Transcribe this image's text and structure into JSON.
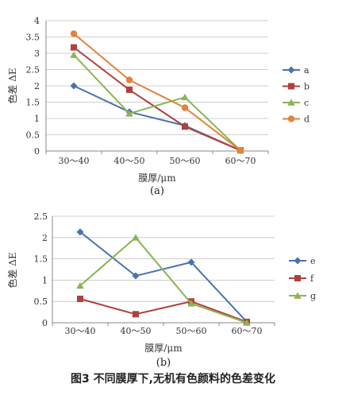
{
  "figure_caption": "图3 不同膜厚下,无机有色颜料的色差变化",
  "chart_data": [
    {
      "type": "line",
      "panel_label": "(a)",
      "xlabel": "膜厚/μm",
      "ylabel": "色差 ΔE",
      "categories": [
        "30～40",
        "40～50",
        "50～60",
        "60～70"
      ],
      "ylim": [
        0,
        4
      ],
      "yticks": [
        "0",
        "0.5",
        "1",
        "1.5",
        "2",
        "2.5",
        "3",
        "3.5",
        "4"
      ],
      "grid": true,
      "legend_position": "right",
      "series": [
        {
          "name": "a",
          "color": "#4a72b0",
          "marker": "diamond",
          "values": [
            2.0,
            1.2,
            0.78,
            0.02
          ]
        },
        {
          "name": "b",
          "color": "#b0413e",
          "marker": "square",
          "values": [
            3.18,
            1.88,
            0.75,
            0.02
          ]
        },
        {
          "name": "c",
          "color": "#8bb454",
          "marker": "triangle",
          "values": [
            2.95,
            1.15,
            1.65,
            0.02
          ]
        },
        {
          "name": "d",
          "color": "#e4813a",
          "marker": "circle",
          "values": [
            3.6,
            2.18,
            1.33,
            0.02
          ]
        }
      ]
    },
    {
      "type": "line",
      "panel_label": "(b)",
      "xlabel": "膜厚/μm",
      "ylabel": "色差 ΔE",
      "categories": [
        "30～40",
        "40～50",
        "50～60",
        "60～70"
      ],
      "ylim": [
        0,
        2.5
      ],
      "yticks": [
        "0",
        "0.5",
        "1",
        "1.5",
        "2",
        "2.5"
      ],
      "grid": true,
      "legend_position": "right",
      "series": [
        {
          "name": "e",
          "color": "#4a72b0",
          "marker": "diamond",
          "values": [
            2.13,
            1.1,
            1.42,
            0.02
          ]
        },
        {
          "name": "f",
          "color": "#b0413e",
          "marker": "square",
          "values": [
            0.56,
            0.2,
            0.5,
            0.02
          ]
        },
        {
          "name": "g",
          "color": "#8bb454",
          "marker": "triangle",
          "values": [
            0.87,
            2.0,
            0.45,
            0.0
          ]
        }
      ]
    }
  ]
}
